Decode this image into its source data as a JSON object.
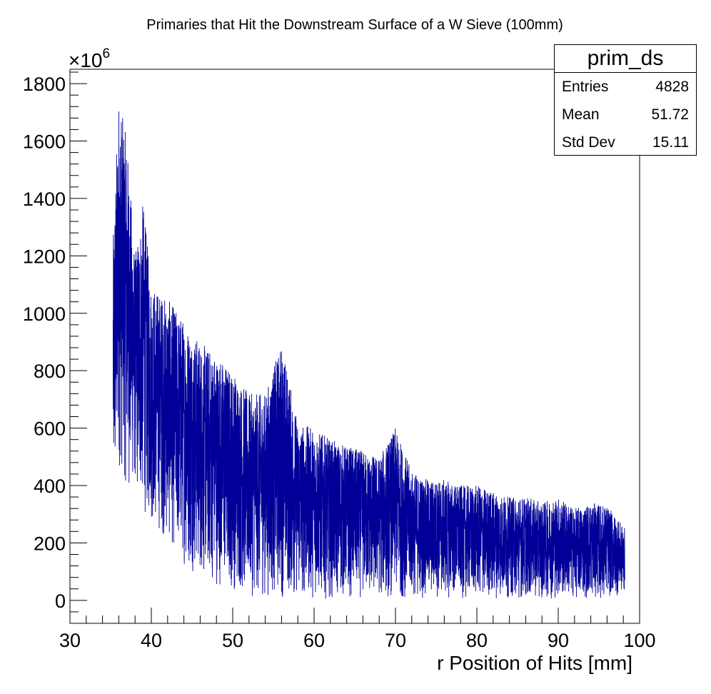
{
  "chart_data": {
    "type": "histogram",
    "title": "Primaries that Hit the Downstream Surface of a W Sieve (100mm)",
    "xlabel": "r Position of Hits [mm]",
    "ylabel": "",
    "y_exponent_label": "×10",
    "y_exponent": "6",
    "xlim": [
      30,
      100
    ],
    "ylim": [
      -80,
      1850
    ],
    "x_ticks": [
      "30",
      "40",
      "50",
      "60",
      "70",
      "80",
      "90",
      "100"
    ],
    "y_ticks": [
      "0",
      "200",
      "400",
      "600",
      "800",
      "1000",
      "1200",
      "1400",
      "1600",
      "1800"
    ],
    "series_color": "#000099",
    "x_range_data": [
      35.3,
      98.2
    ],
    "envelope": {
      "r": [
        35.3,
        36,
        37,
        38,
        39,
        40,
        42,
        44,
        46,
        48,
        50,
        52,
        54,
        56,
        58,
        60,
        62,
        64,
        66,
        68,
        70,
        72,
        74,
        76,
        78,
        80,
        82,
        84,
        86,
        88,
        90,
        92,
        94,
        96,
        98.2
      ],
      "upper": [
        1250,
        1760,
        1600,
        1200,
        1390,
        1100,
        1050,
        980,
        900,
        860,
        800,
        720,
        720,
        900,
        620,
        600,
        560,
        540,
        520,
        500,
        600,
        450,
        420,
        420,
        400,
        400,
        380,
        360,
        360,
        340,
        360,
        320,
        340,
        330,
        250
      ],
      "lower": [
        250,
        450,
        380,
        380,
        300,
        260,
        200,
        120,
        80,
        50,
        30,
        10,
        10,
        5,
        5,
        5,
        5,
        5,
        5,
        5,
        5,
        5,
        5,
        5,
        5,
        5,
        5,
        5,
        5,
        5,
        5,
        5,
        5,
        5,
        20
      ]
    }
  },
  "stats": {
    "title": "prim_ds",
    "rows": [
      {
        "label": "Entries",
        "value": "4828"
      },
      {
        "label": "Mean",
        "value": "51.72"
      },
      {
        "label": "Std Dev",
        "value": "15.11"
      }
    ]
  }
}
